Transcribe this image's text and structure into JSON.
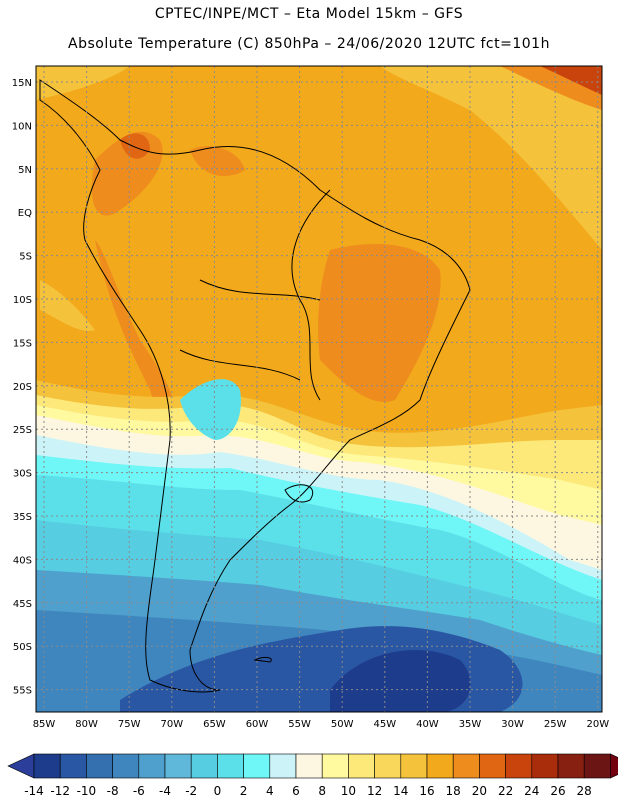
{
  "header": {
    "line1": "CPTEC/INPE/MCT –  Eta Model 15km – GFS",
    "line2": "Absolute Temperature (C) 850hPa – 24/06/2020 12UTC fct=101h"
  },
  "map": {
    "lat_labels": [
      "15N",
      "10N",
      "5N",
      "EQ",
      "5S",
      "10S",
      "15S",
      "20S",
      "25S",
      "30S",
      "35S",
      "40S",
      "45S",
      "50S",
      "55S"
    ],
    "lon_labels": [
      "85W",
      "80W",
      "75W",
      "70W",
      "65W",
      "60W",
      "55W",
      "50W",
      "45W",
      "40W",
      "35W",
      "30W",
      "25W",
      "20W"
    ]
  },
  "colorbar": {
    "labels": [
      "-14",
      "-12",
      "-10",
      "-8",
      "-6",
      "-4",
      "-2",
      "0",
      "2",
      "4",
      "6",
      "8",
      "10",
      "12",
      "14",
      "16",
      "18",
      "20",
      "22",
      "24",
      "26",
      "28"
    ],
    "colors": [
      "#1d3d8c",
      "#2a57a3",
      "#3470b0",
      "#3f86bf",
      "#4fa0cd",
      "#5fb8da",
      "#56cde0",
      "#5be0ea",
      "#6ff6f6",
      "#ccf4f8",
      "#fdf7e1",
      "#fff9a0",
      "#fce97a",
      "#f9d75a",
      "#f5c23b",
      "#f3a91c",
      "#ee8d1d",
      "#e06614",
      "#c9430c",
      "#a92c0b",
      "#882012",
      "#6c1515"
    ],
    "under_color": "#2b3f9a",
    "over_color": "#73000f"
  }
}
